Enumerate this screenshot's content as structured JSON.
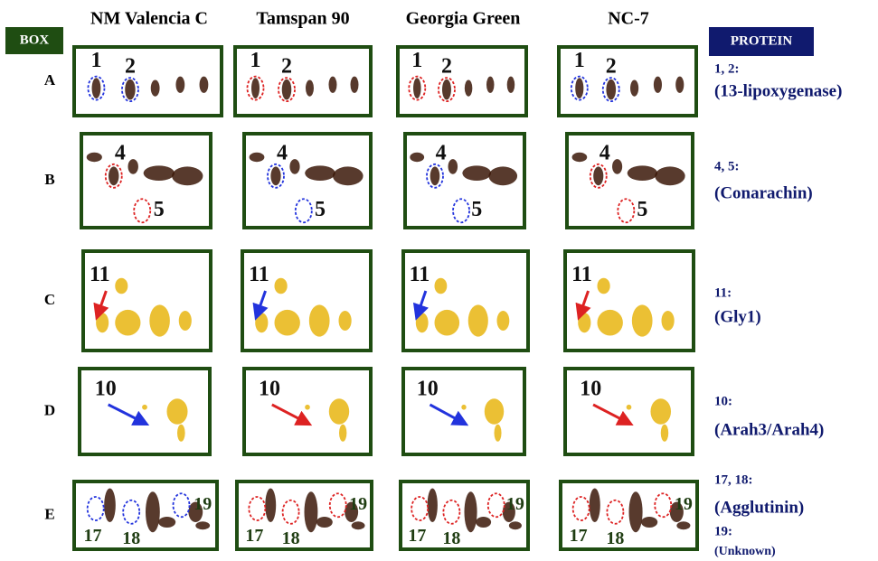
{
  "box_label": "BOX",
  "protein_label": "PROTEIN",
  "columns": [
    "NM Valencia C",
    "Tamspan 90",
    "Georgia Green",
    "NC-7"
  ],
  "rows": [
    {
      "label": "A",
      "spot_labels": [
        "1",
        "2"
      ],
      "proteins": [
        {
          "ids": "1, 2:",
          "name": "(13-lipoxygenase)"
        }
      ]
    },
    {
      "label": "B",
      "spot_labels": [
        "4",
        "5"
      ],
      "proteins": [
        {
          "ids": "4, 5:",
          "name": "(Conarachin)"
        }
      ]
    },
    {
      "label": "C",
      "spot_labels": [
        "11"
      ],
      "proteins": [
        {
          "ids": "11:",
          "name": "(Gly1)"
        }
      ]
    },
    {
      "label": "D",
      "spot_labels": [
        "10"
      ],
      "proteins": [
        {
          "ids": "10:",
          "name": "(Arah3/Arah4)"
        }
      ]
    },
    {
      "label": "E",
      "spot_labels": [
        "17",
        "18",
        "19"
      ],
      "proteins": [
        {
          "ids": "17, 18:",
          "name": "(Agglutinin)"
        },
        {
          "ids": "19:",
          "name": "(Unknown)"
        }
      ]
    }
  ]
}
